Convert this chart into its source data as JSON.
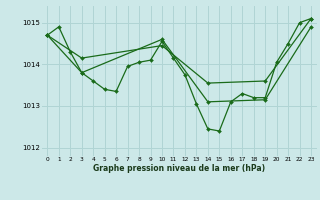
{
  "title": "Graphe pression niveau de la mer (hPa)",
  "bg_color": "#cce8e8",
  "grid_color": "#b0d4d4",
  "line_color": "#1a6b1a",
  "marker_color": "#1a6b1a",
  "xlim": [
    -0.5,
    23.5
  ],
  "ylim": [
    1011.8,
    1015.4
  ],
  "yticks": [
    1012,
    1013,
    1014,
    1015
  ],
  "xticks": [
    0,
    1,
    2,
    3,
    4,
    5,
    6,
    7,
    8,
    9,
    10,
    11,
    12,
    13,
    14,
    15,
    16,
    17,
    18,
    19,
    20,
    21,
    22,
    23
  ],
  "series1": [
    0,
    1014.7,
    1,
    1014.9,
    2,
    1014.3,
    3,
    1013.8,
    4,
    1013.6,
    5,
    1013.4,
    6,
    1013.35,
    7,
    1013.95,
    8,
    1014.05,
    9,
    1014.1,
    10,
    1014.55,
    11,
    1014.15,
    12,
    1013.75,
    13,
    1013.05,
    14,
    1012.45,
    15,
    1012.4,
    16,
    1013.1,
    17,
    1013.3,
    18,
    1013.2,
    19,
    1013.2,
    20,
    1014.05,
    21,
    1014.5,
    22,
    1015.0,
    23,
    1015.1
  ],
  "series2_x": [
    0,
    3,
    10,
    14,
    19,
    23
  ],
  "series2_y": [
    1014.7,
    1014.15,
    1014.45,
    1013.55,
    1013.6,
    1015.1
  ],
  "series3_x": [
    0,
    3,
    10,
    14,
    19,
    23
  ],
  "series3_y": [
    1014.7,
    1013.8,
    1014.6,
    1013.1,
    1013.15,
    1014.9
  ]
}
